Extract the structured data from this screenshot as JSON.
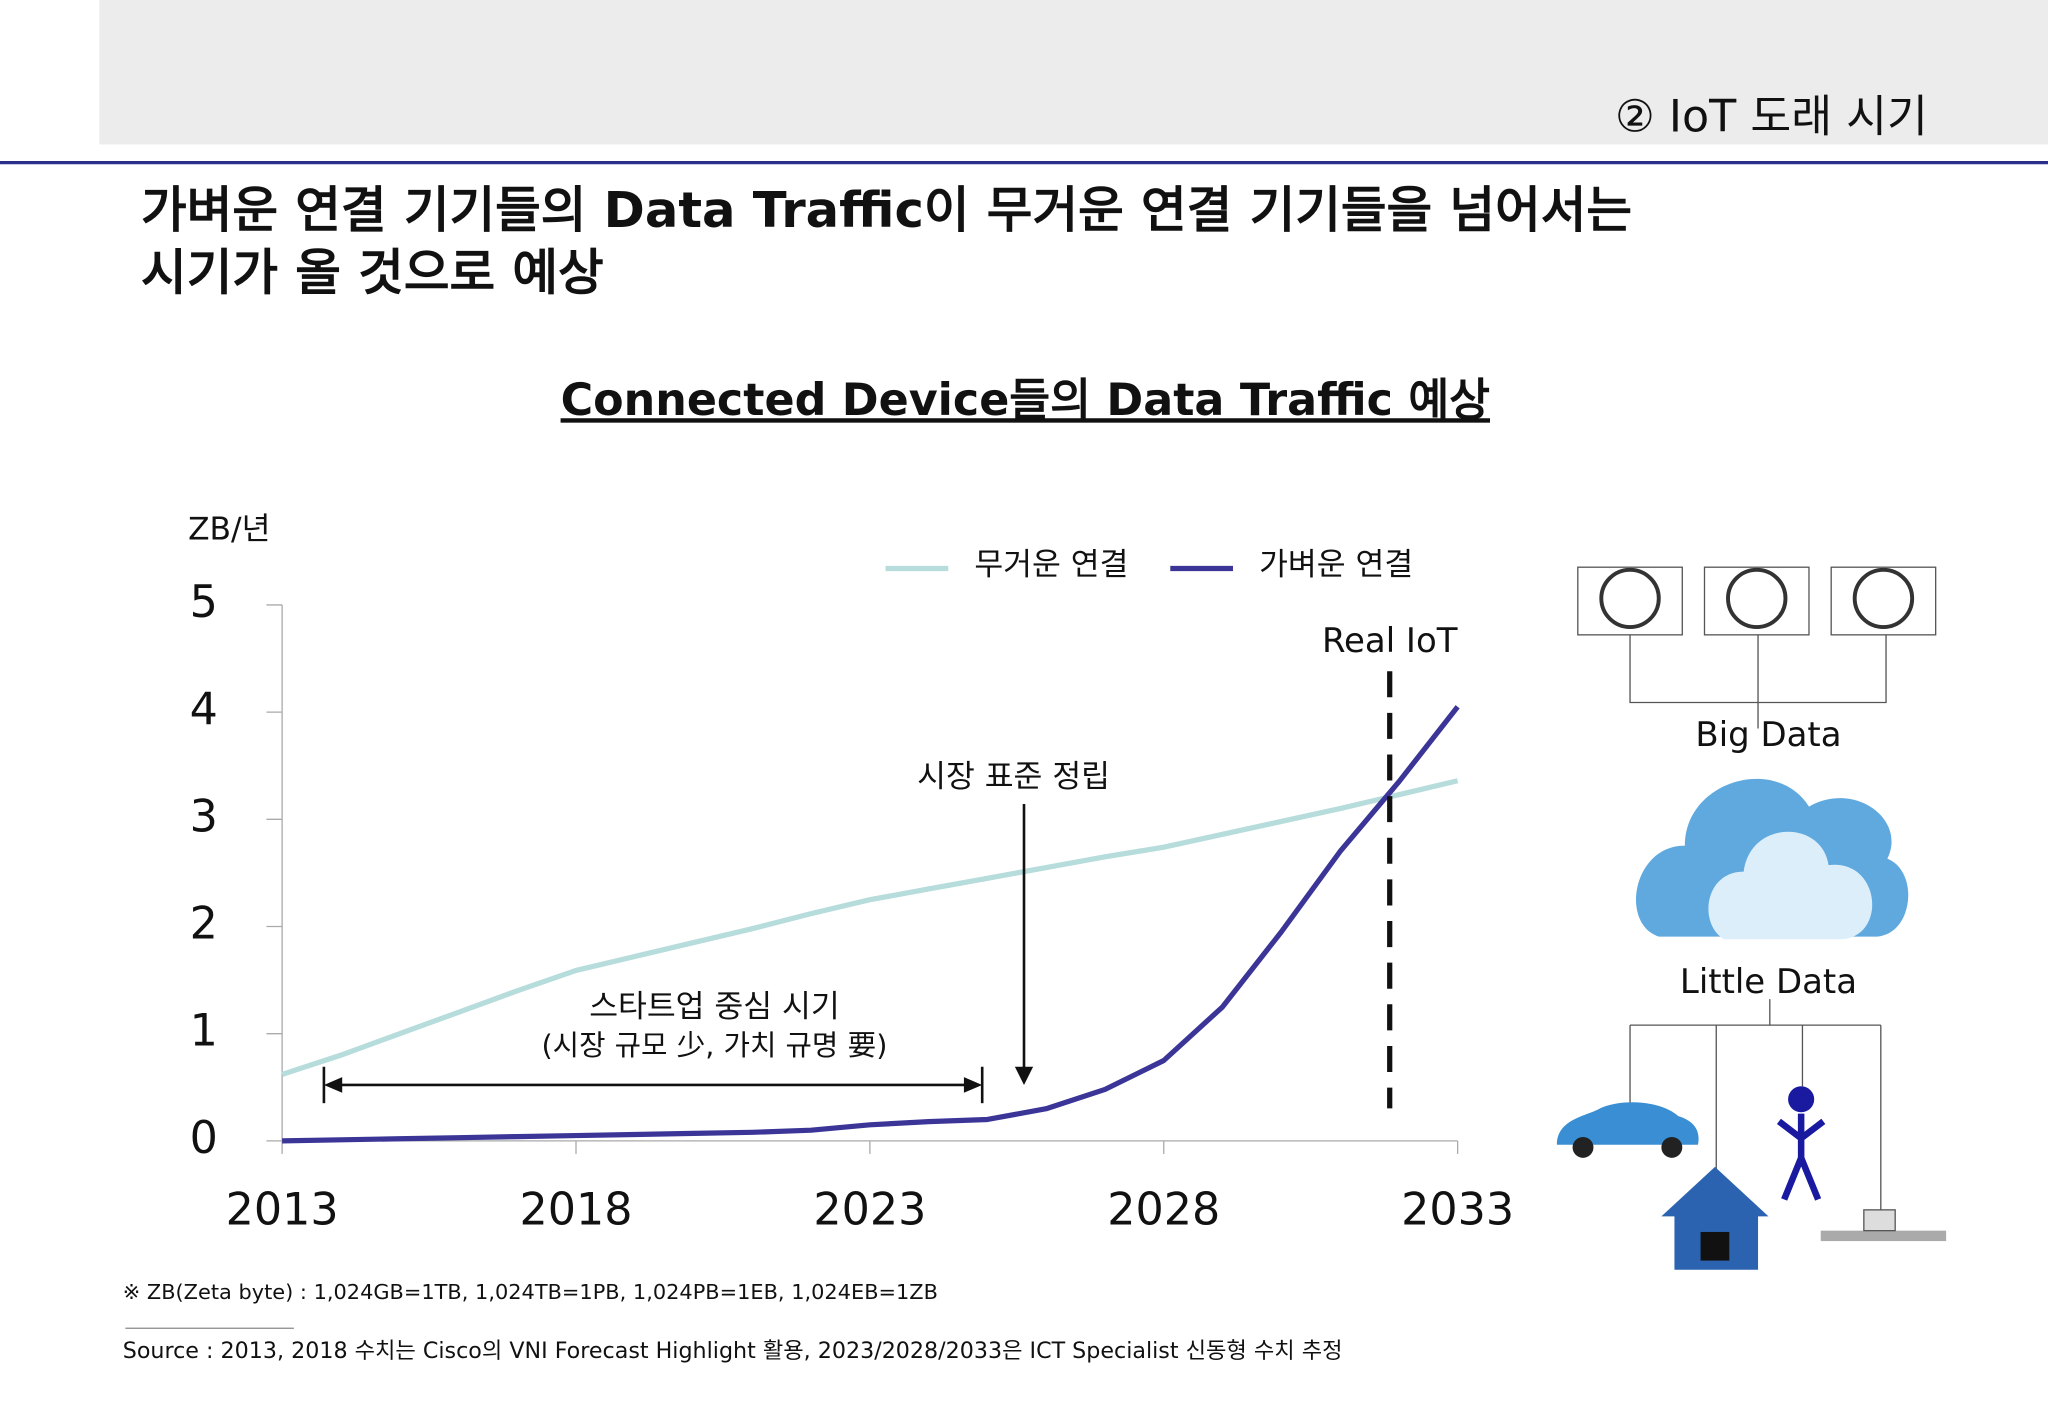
{
  "header": {
    "section": "② IoT 도래 시기"
  },
  "headline": [
    "가벼운 연결 기기들의 Data Traffic이 무거운 연결 기기들을 넘어서는",
    "시기가 올 것으로 예상"
  ],
  "chart_data": {
    "type": "line",
    "title": "Connected Device들의 Data Traffic 예상",
    "y_label": "ZB/년",
    "x": [
      2013,
      2014,
      2015,
      2016,
      2017,
      2018,
      2019,
      2020,
      2021,
      2022,
      2023,
      2024,
      2025,
      2026,
      2027,
      2028,
      2029,
      2030,
      2031,
      2032,
      2033
    ],
    "series": [
      {
        "name": "무거운 연결",
        "color": "#b6dcdc",
        "values": [
          0.62,
          0.8,
          1.0,
          1.2,
          1.4,
          1.59,
          1.72,
          1.85,
          1.98,
          2.12,
          2.25,
          2.35,
          2.45,
          2.55,
          2.65,
          2.74,
          2.86,
          2.98,
          3.1,
          3.23,
          3.36
        ]
      },
      {
        "name": "가벼운 연결",
        "color": "#3a3597",
        "values": [
          0,
          0.01,
          0.02,
          0.03,
          0.04,
          0.05,
          0.06,
          0.07,
          0.08,
          0.1,
          0.15,
          0.18,
          0.2,
          0.3,
          0.48,
          0.75,
          1.25,
          1.95,
          2.7,
          3.35,
          4.05
        ]
      }
    ],
    "xlim": [
      2013,
      2033
    ],
    "xticks": [
      2013,
      2018,
      2023,
      2028,
      2033
    ],
    "ylim": [
      0,
      5
    ],
    "yticks": [
      0,
      1,
      2,
      3,
      4,
      5
    ],
    "annotations": [
      "Real IoT",
      "시장 표준 정립",
      "스타트업 중심 시기",
      "(시장 규모 少, 가치 규명 要)"
    ]
  },
  "diagram": {
    "top": "Big Data",
    "bottom": "Little Data"
  },
  "notes": [
    "※ ZB(Zeta byte) : 1,024GB=1TB, 1,024TB=1PB, 1,024PB=1EB, 1,024EB=1ZB",
    "Source : 2013, 2018 수치는 Cisco의 VNI Forecast Highlight 활용, 2023/2028/2033은 ICT Specialist 신동형 수치 추정"
  ]
}
